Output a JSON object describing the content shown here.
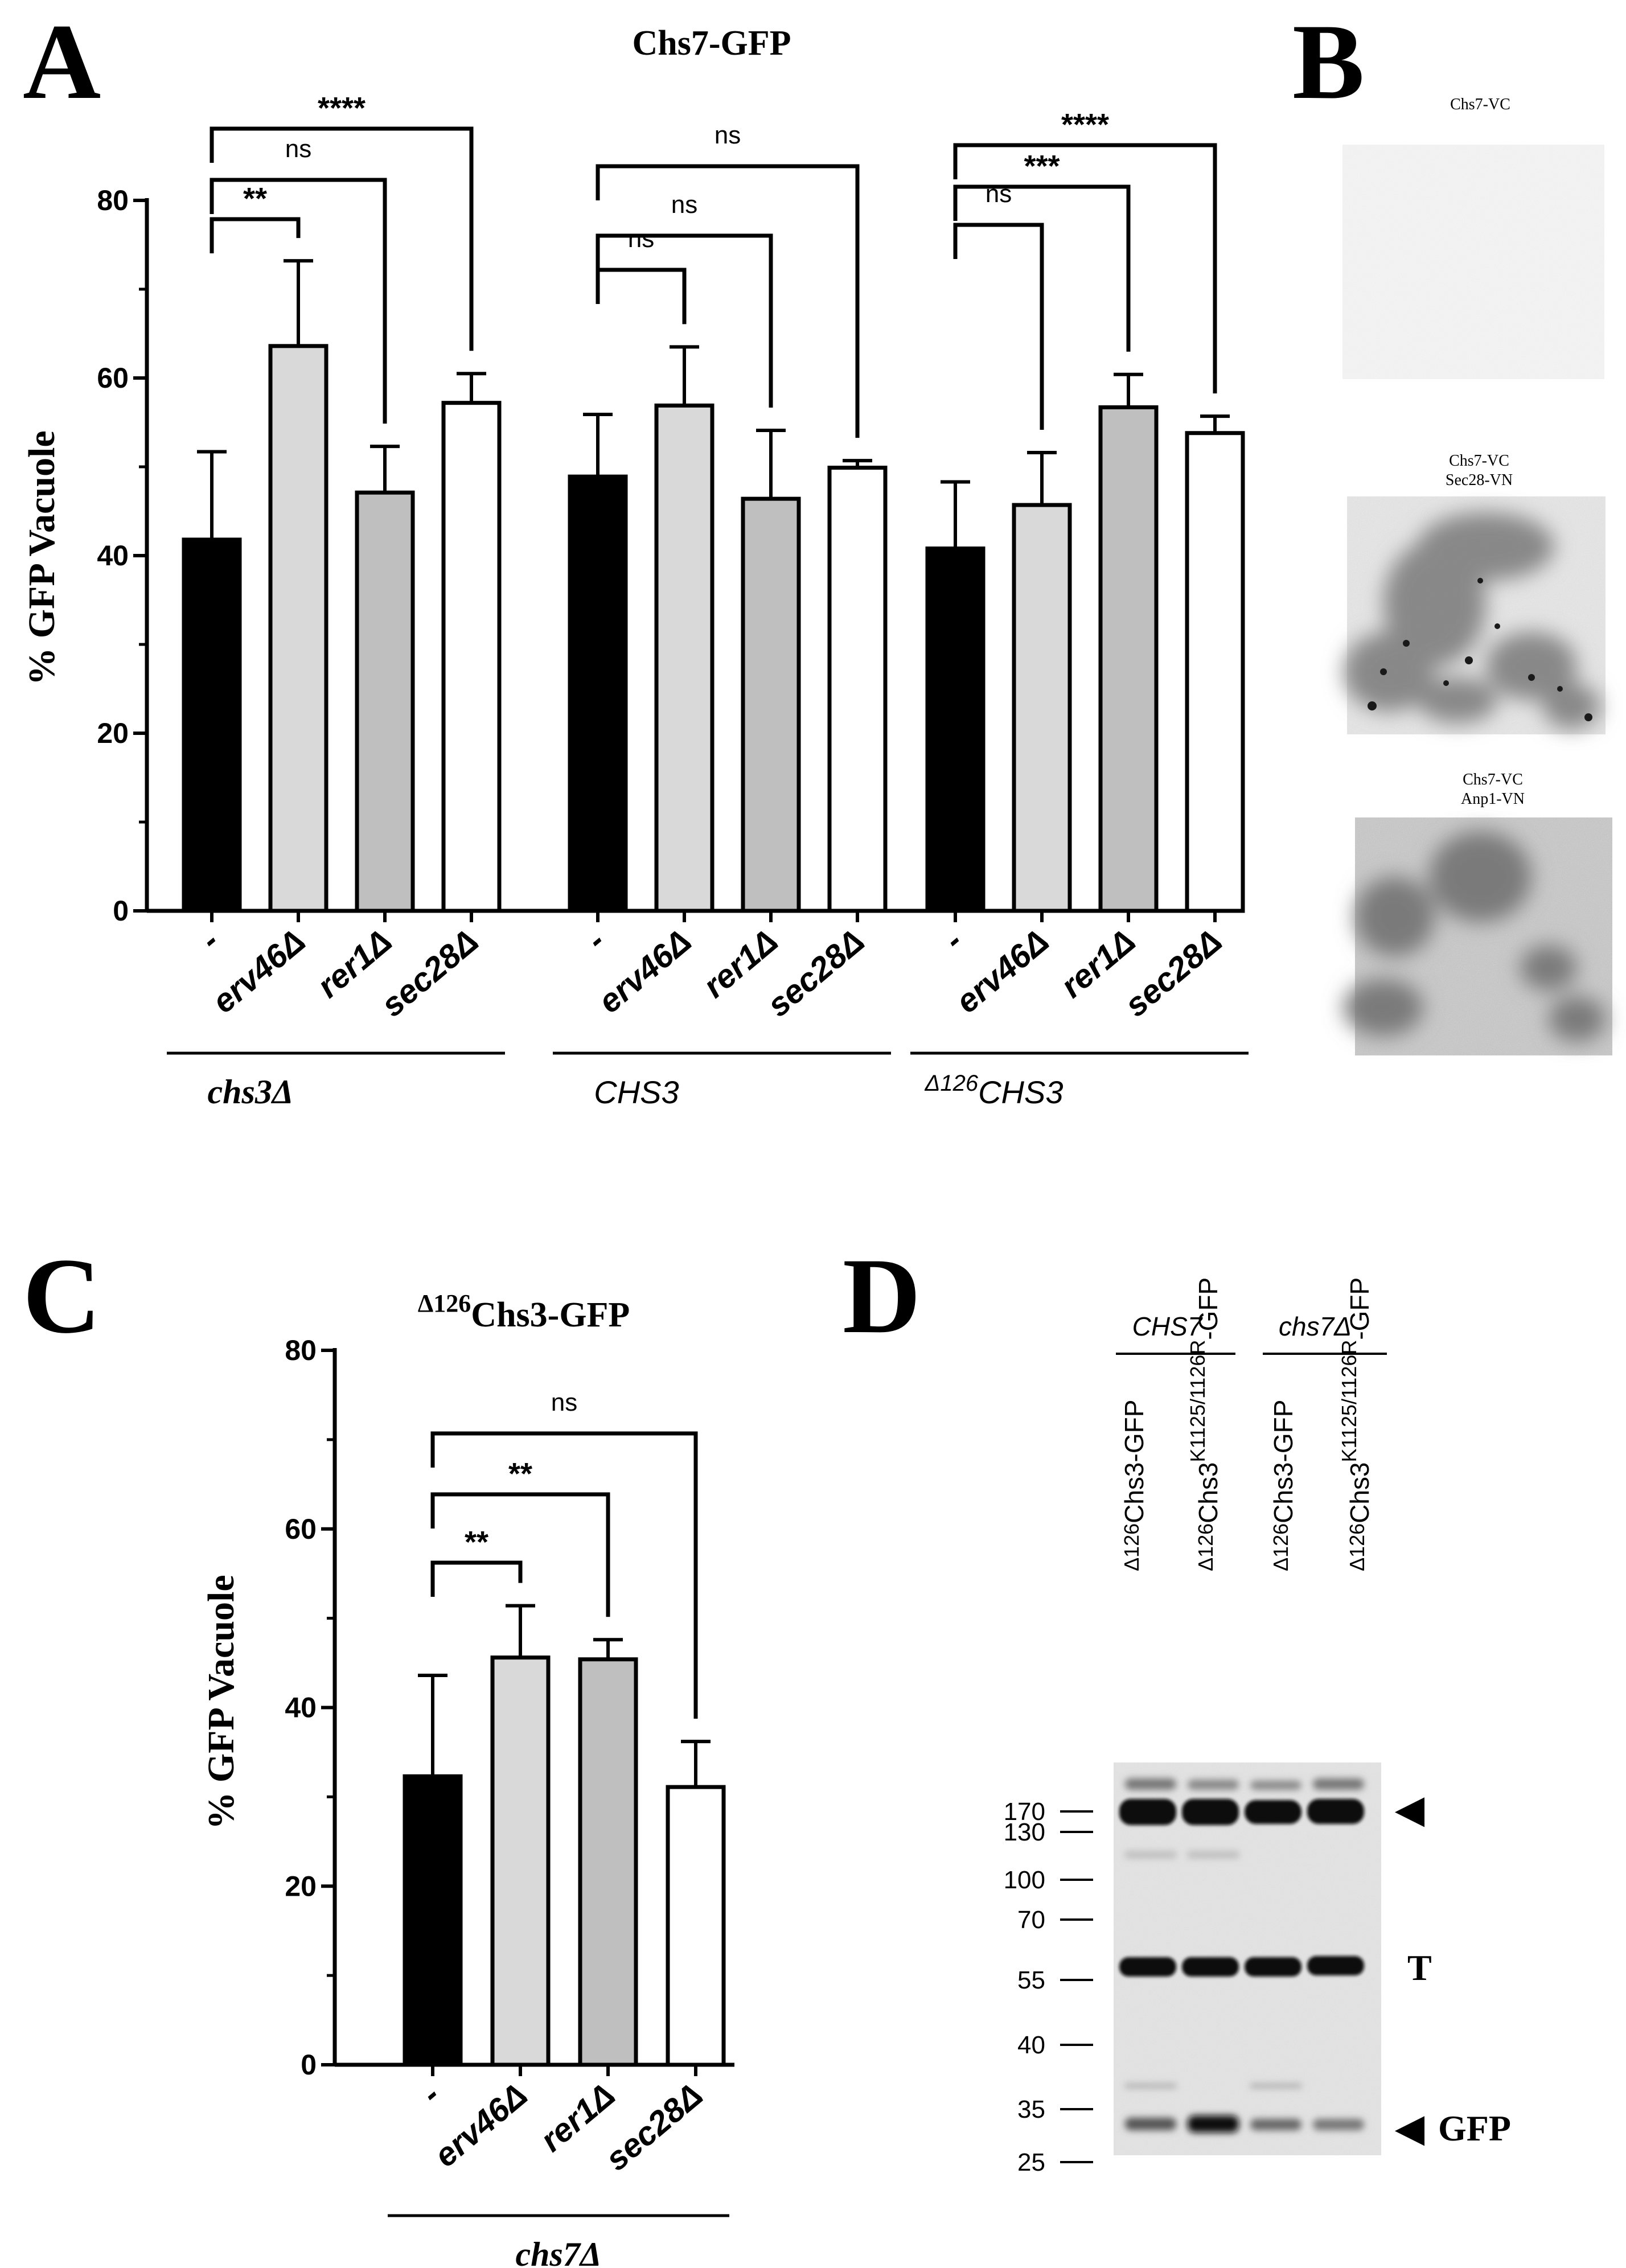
{
  "panels": {
    "A": {
      "letter": "A",
      "title": "Chs7-GFP",
      "ylabel": "% GFP Vacuole",
      "yticks": [
        "0",
        "20",
        "40",
        "60",
        "80"
      ]
    },
    "B": {
      "letter": "B",
      "images": [
        {
          "label_lines": [
            "Chs7-VC"
          ]
        },
        {
          "label_lines": [
            "Chs7-VC",
            "Sec28-VN"
          ]
        },
        {
          "label_lines": [
            "Chs7-VC",
            "Anp1-VN"
          ]
        }
      ]
    },
    "C": {
      "letter": "C",
      "title_sup": "Δ126",
      "title": "Chs3-GFP",
      "ylabel": "% GFP Vacuole",
      "yticks": [
        "0",
        "20",
        "40",
        "60",
        "80"
      ]
    },
    "D": {
      "letter": "D",
      "groups": [
        "CHS7",
        "chs7Δ"
      ],
      "lanes": [
        {
          "sup": "Δ126",
          "base": "Chs3-GFP",
          "sup2": ""
        },
        {
          "sup": "Δ126",
          "base": "Chs3",
          "sup2": "K1125/1126R",
          "tail": "-GFP"
        },
        {
          "sup": "Δ126",
          "base": "Chs3-GFP",
          "sup2": ""
        },
        {
          "sup": "Δ126",
          "base": "Chs3",
          "sup2": "K1125/1126R",
          "tail": "-GFP"
        }
      ],
      "markers": [
        "170",
        "130",
        "100",
        "70",
        "55",
        "40",
        "35",
        "25"
      ],
      "band_labels": {
        "top": "◀",
        "mid": "T",
        "bottom_arrow": "◀",
        "bottom": "GFP"
      }
    }
  },
  "chart_data": [
    {
      "type": "bar",
      "panel": "A",
      "title": "Chs7-GFP",
      "ylabel": "% GFP Vacuole",
      "ylim": [
        0,
        80
      ],
      "groups": [
        {
          "name": "chs3Δ",
          "categories": [
            "-",
            "erv46Δ",
            "rer1Δ",
            "sec28Δ"
          ],
          "values": [
            41.8,
            63.6,
            47.1,
            57.2
          ],
          "errors": [
            9.9,
            9.6,
            5.2,
            3.3
          ],
          "colors": [
            "#000000",
            "#d9d9d9",
            "#bfbfbf",
            "#ffffff"
          ],
          "significance": [
            {
              "from": 0,
              "to": 1,
              "label": "**"
            },
            {
              "from": 0,
              "to": 2,
              "label": "ns"
            },
            {
              "from": 0,
              "to": 3,
              "label": "****"
            }
          ]
        },
        {
          "name": "CHS3",
          "categories": [
            "-",
            "erv46Δ",
            "rer1Δ",
            "sec28Δ"
          ],
          "values": [
            48.9,
            56.9,
            46.4,
            49.9
          ],
          "errors": [
            7.0,
            6.6,
            7.7,
            0.8
          ],
          "colors": [
            "#000000",
            "#d9d9d9",
            "#bfbfbf",
            "#ffffff"
          ],
          "significance": [
            {
              "from": 0,
              "to": 1,
              "label": "ns"
            },
            {
              "from": 0,
              "to": 2,
              "label": "ns"
            },
            {
              "from": 0,
              "to": 3,
              "label": "ns"
            }
          ]
        },
        {
          "name": "Δ126CHS3",
          "name_sup": "Δ126",
          "name_base": "CHS3",
          "categories": [
            "-",
            "erv46Δ",
            "rer1Δ",
            "sec28Δ"
          ],
          "values": [
            40.8,
            45.7,
            56.7,
            53.8
          ],
          "errors": [
            7.5,
            5.9,
            3.7,
            1.9
          ],
          "colors": [
            "#000000",
            "#d9d9d9",
            "#bfbfbf",
            "#ffffff"
          ],
          "significance": [
            {
              "from": 0,
              "to": 1,
              "label": "ns"
            },
            {
              "from": 0,
              "to": 2,
              "label": "***"
            },
            {
              "from": 0,
              "to": 3,
              "label": "****"
            }
          ]
        }
      ]
    },
    {
      "type": "bar",
      "panel": "C",
      "title": "Δ126Chs3-GFP",
      "ylabel": "% GFP Vacuole",
      "ylim": [
        0,
        80
      ],
      "groups": [
        {
          "name": "chs7Δ",
          "categories": [
            "-",
            "erv46Δ",
            "rer1Δ",
            "sec28Δ"
          ],
          "values": [
            32.3,
            45.6,
            45.4,
            31.1
          ],
          "errors": [
            11.3,
            5.8,
            2.2,
            5.1
          ],
          "colors": [
            "#000000",
            "#d9d9d9",
            "#bfbfbf",
            "#ffffff"
          ],
          "significance": [
            {
              "from": 0,
              "to": 1,
              "label": "**"
            },
            {
              "from": 0,
              "to": 2,
              "label": "**"
            },
            {
              "from": 0,
              "to": 3,
              "label": "ns"
            }
          ]
        }
      ]
    }
  ]
}
